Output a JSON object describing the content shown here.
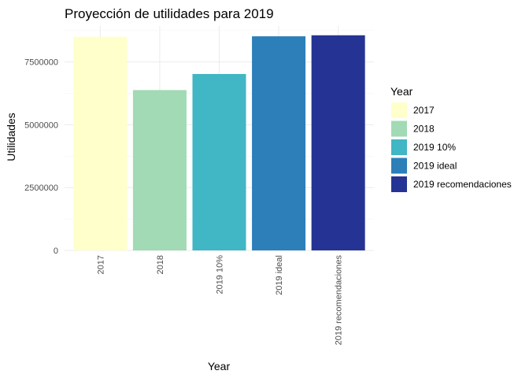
{
  "chart_data": {
    "type": "bar",
    "title": "Proyección de utilidades para 2019",
    "xlabel": "Year",
    "ylabel": "Utilidades",
    "categories": [
      "2017",
      "2018",
      "2019 10%",
      "2019 ideal",
      "2019 recomendaciones"
    ],
    "values": [
      8500000,
      6380000,
      7020000,
      8520000,
      8560000
    ],
    "colors": [
      "#FFFFCC",
      "#A1DAB4",
      "#41B6C4",
      "#2C7FB8",
      "#253494"
    ],
    "ylim": [
      0,
      8930000
    ],
    "yticks": [
      0,
      2500000,
      5000000,
      7500000
    ],
    "ytick_labels": [
      "0",
      "2500000",
      "5000000",
      "7500000"
    ],
    "grid": true,
    "legend": {
      "title": "Year",
      "position": "right",
      "entries": [
        "2017",
        "2018",
        "2019 10%",
        "2019 ideal",
        "2019 recomendaciones"
      ]
    }
  }
}
